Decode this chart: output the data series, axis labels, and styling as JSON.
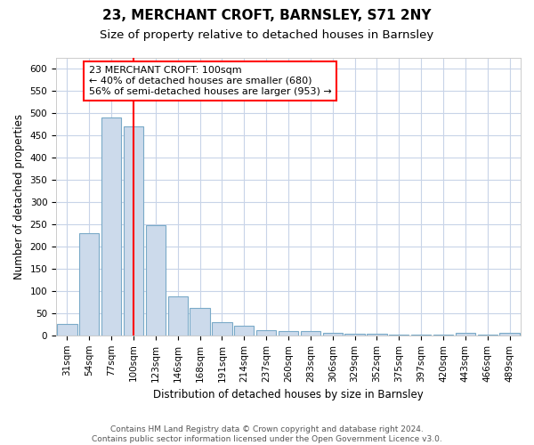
{
  "title_line1": "23, MERCHANT CROFT, BARNSLEY, S71 2NY",
  "title_line2": "Size of property relative to detached houses in Barnsley",
  "xlabel": "Distribution of detached houses by size in Barnsley",
  "ylabel": "Number of detached properties",
  "categories": [
    "31sqm",
    "54sqm",
    "77sqm",
    "100sqm",
    "123sqm",
    "146sqm",
    "168sqm",
    "191sqm",
    "214sqm",
    "237sqm",
    "260sqm",
    "283sqm",
    "306sqm",
    "329sqm",
    "352sqm",
    "375sqm",
    "397sqm",
    "420sqm",
    "443sqm",
    "466sqm",
    "489sqm"
  ],
  "values": [
    25,
    230,
    490,
    470,
    248,
    88,
    62,
    30,
    22,
    12,
    10,
    10,
    5,
    4,
    3,
    2,
    2,
    2,
    6,
    2,
    5
  ],
  "bar_color": "#ccdaeb",
  "bar_edge_color": "#7aaac8",
  "redline_index": 3,
  "annotation_text": "23 MERCHANT CROFT: 100sqm\n← 40% of detached houses are smaller (680)\n56% of semi-detached houses are larger (953) →",
  "annotation_box_color": "white",
  "annotation_box_edge_color": "red",
  "ylim": [
    0,
    625
  ],
  "yticks": [
    0,
    50,
    100,
    150,
    200,
    250,
    300,
    350,
    400,
    450,
    500,
    550,
    600
  ],
  "footer_line1": "Contains HM Land Registry data © Crown copyright and database right 2024.",
  "footer_line2": "Contains public sector information licensed under the Open Government Licence v3.0.",
  "title_fontsize": 11,
  "subtitle_fontsize": 9.5,
  "axis_label_fontsize": 8.5,
  "tick_fontsize": 7.5,
  "annotation_fontsize": 8,
  "footer_fontsize": 6.5,
  "grid_color": "#c8d4e8",
  "background_color": "#ffffff",
  "plot_bg_color": "#ffffff"
}
